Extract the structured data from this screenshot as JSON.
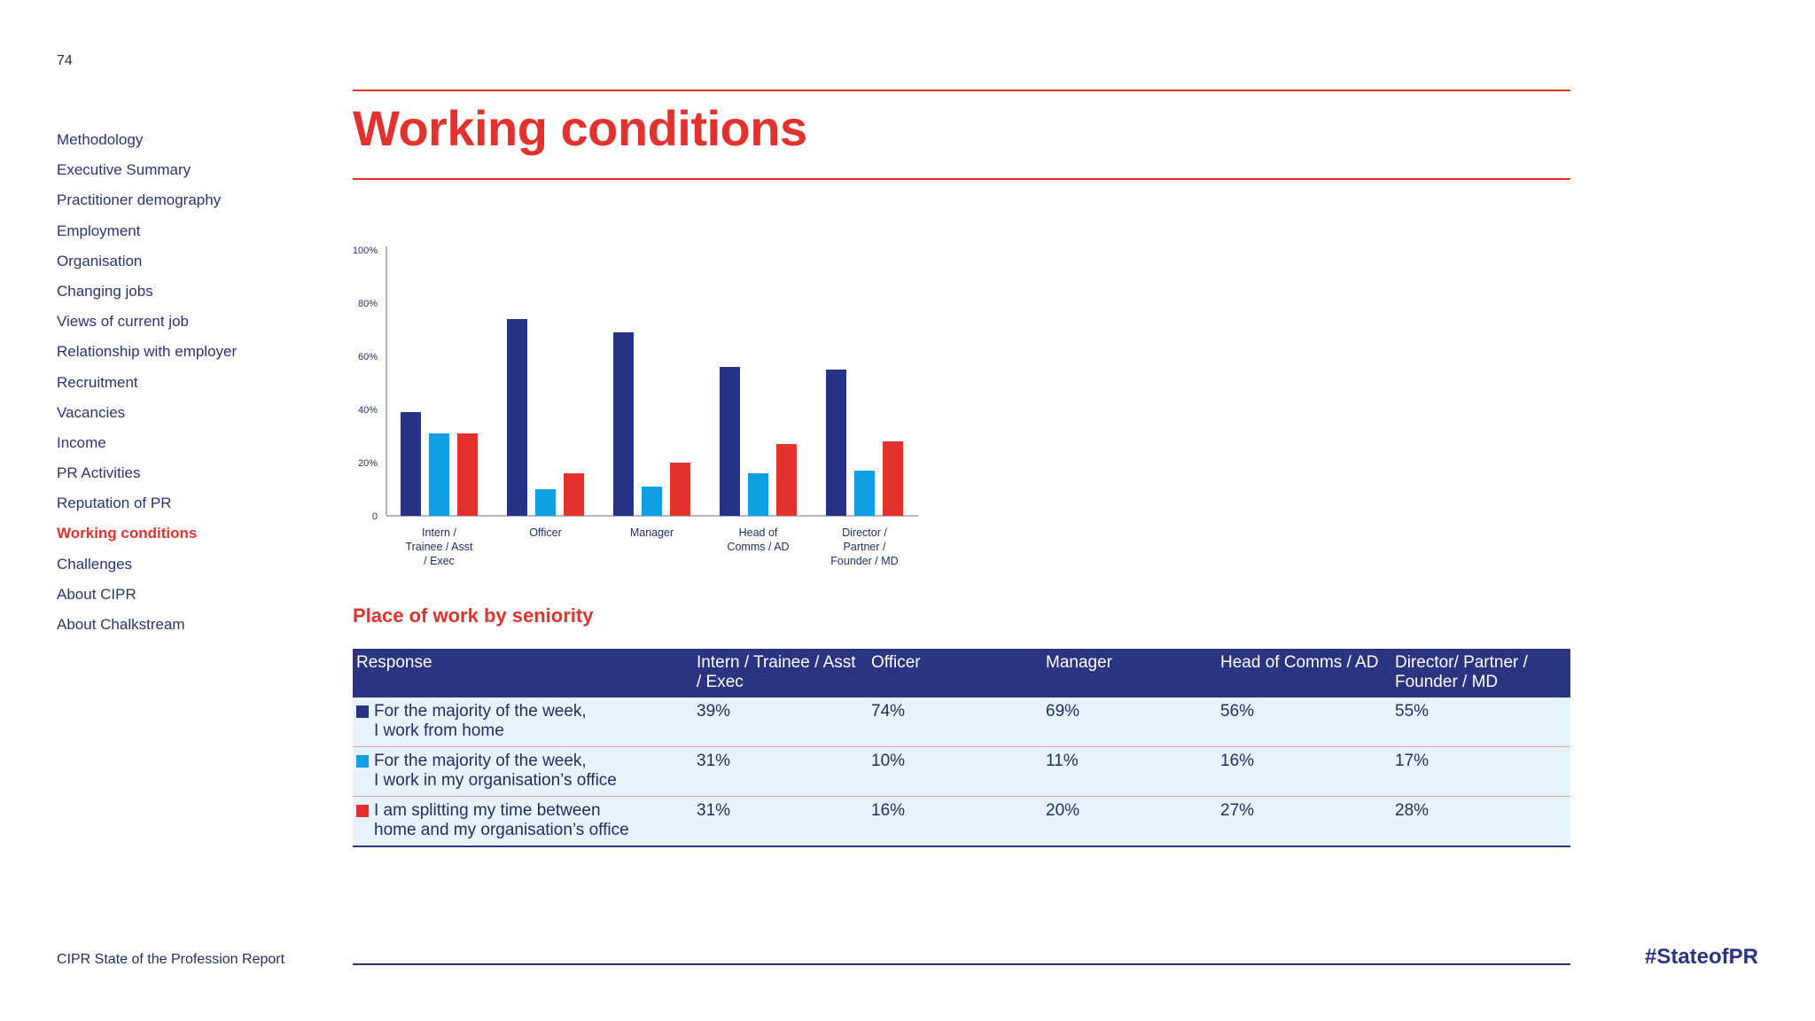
{
  "page_number": "74",
  "nav": {
    "items": [
      {
        "label": "Methodology",
        "active": false
      },
      {
        "label": "Executive Summary",
        "active": false
      },
      {
        "label": "Practitioner demography",
        "active": false
      },
      {
        "label": "Employment",
        "active": false
      },
      {
        "label": "Organisation",
        "active": false
      },
      {
        "label": "Changing jobs",
        "active": false
      },
      {
        "label": "Views of current job",
        "active": false
      },
      {
        "label": "Relationship with employer",
        "active": false
      },
      {
        "label": "Recruitment",
        "active": false
      },
      {
        "label": "Vacancies",
        "active": false
      },
      {
        "label": "Income",
        "active": false
      },
      {
        "label": "PR Activities",
        "active": false
      },
      {
        "label": "Reputation of PR",
        "active": false
      },
      {
        "label": "Working conditions",
        "active": true
      },
      {
        "label": "Challenges",
        "active": false
      },
      {
        "label": "About CIPR",
        "active": false
      },
      {
        "label": "About Chalkstream",
        "active": false
      }
    ]
  },
  "title": "Working conditions",
  "colors": {
    "accent": "#e3312d",
    "navy": "#2a3480",
    "series_1": "#283284",
    "series_2": "#0ea0e2",
    "series_3": "#e3312d",
    "row_bg": "#e6f2fc"
  },
  "chart_data": {
    "type": "bar",
    "categories": [
      [
        "Intern /",
        "Trainee / Asst",
        "/ Exec"
      ],
      [
        "Officer"
      ],
      [
        "Manager"
      ],
      [
        "Head of",
        "Comms / AD"
      ],
      [
        "Director /",
        "Partner /",
        "Founder / MD"
      ]
    ],
    "series": [
      {
        "values": [
          39,
          74,
          69,
          56,
          55
        ],
        "color": "#283284"
      },
      {
        "values": [
          31,
          10,
          11,
          16,
          17
        ],
        "color": "#0ea0e2"
      },
      {
        "values": [
          31,
          16,
          20,
          27,
          28
        ],
        "color": "#e3312d"
      }
    ],
    "yticks": [
      "0",
      "20%",
      "40%",
      "60%",
      "80%",
      "100%"
    ],
    "ylim": [
      0,
      100
    ],
    "legend": "none",
    "grid": false
  },
  "table": {
    "title": "Place of work by seniority",
    "headers": [
      "Response",
      "Intern / Trainee / Asst / Exec",
      "Officer",
      "Manager",
      "Head of Comms / AD",
      "Director/ Partner / Founder / MD"
    ],
    "rows": [
      {
        "color": "#283284",
        "response": [
          "For the majority of the week,",
          "I work from home"
        ],
        "values": [
          "39%",
          "74%",
          "69%",
          "56%",
          "55%"
        ]
      },
      {
        "color": "#0ea0e2",
        "response": [
          "For the majority of the week,",
          "I work in my organisation’s office"
        ],
        "values": [
          "31%",
          "10%",
          "11%",
          "16%",
          "17%"
        ]
      },
      {
        "color": "#e3312d",
        "response": [
          "I am splitting my time between",
          "home and my organisation’s office"
        ],
        "values": [
          "31%",
          "16%",
          "20%",
          "27%",
          "28%"
        ]
      }
    ]
  },
  "footer": {
    "report_name": "CIPR State of the Profession Report",
    "hashtag": "#StateofPR"
  }
}
